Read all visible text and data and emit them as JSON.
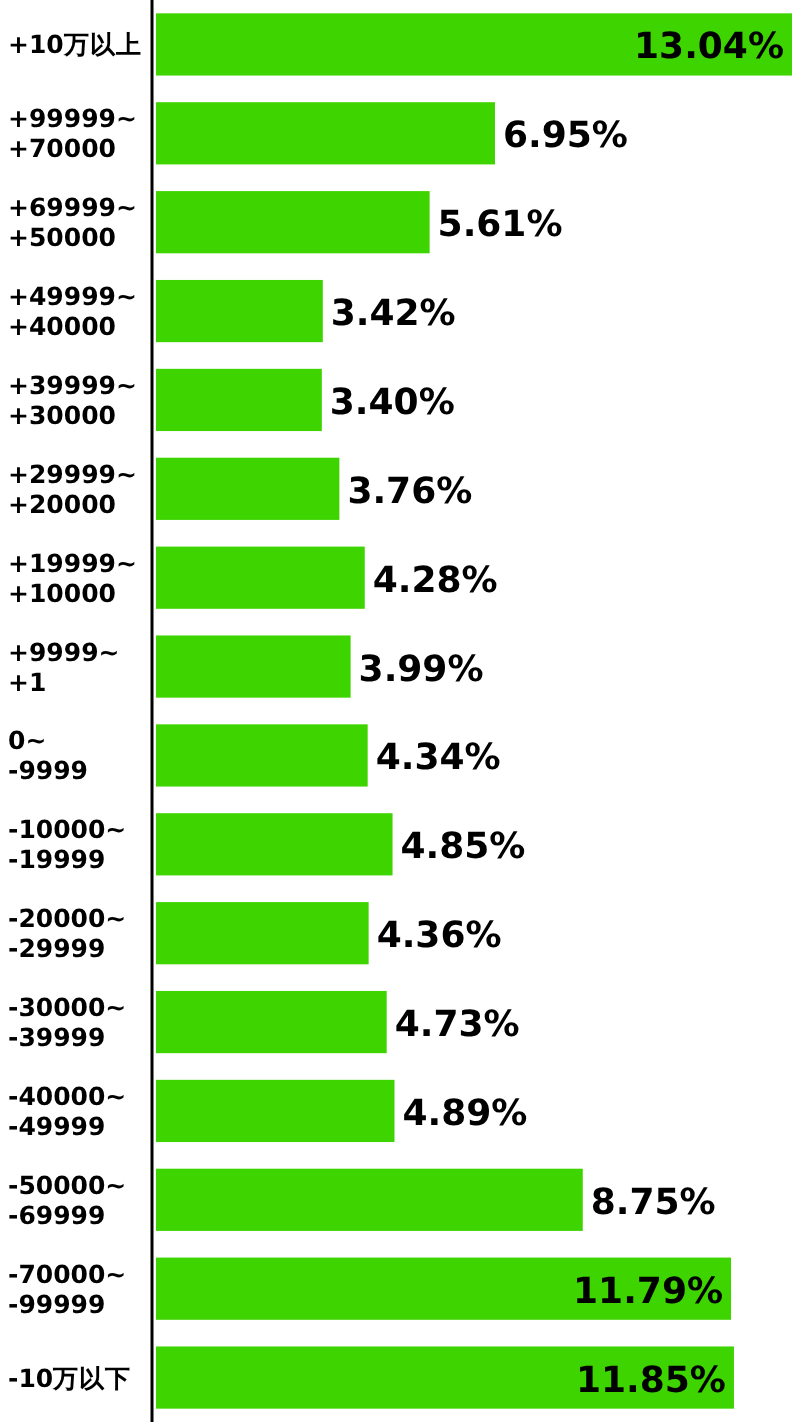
{
  "chart_data": {
    "type": "bar",
    "orientation": "horizontal",
    "categories": [
      "+10万以上",
      "+99999~ +70000",
      "+69999~ +50000",
      "+49999~ +40000",
      "+39999~ +30000",
      "+29999~ +20000",
      "+19999~ +10000",
      "+9999~ +1",
      "0~ -9999",
      "-10000~ -19999",
      "-20000~ -29999",
      "-30000~ -39999",
      "-40000~ -49999",
      "-50000~ -69999",
      "-70000~ -99999",
      "-10万以下"
    ],
    "values": [
      13.04,
      6.95,
      5.61,
      3.42,
      3.4,
      3.76,
      4.28,
      3.99,
      4.34,
      4.85,
      4.36,
      4.73,
      4.89,
      8.75,
      11.79,
      11.85
    ],
    "value_labels": [
      "13.04%",
      "6.95%",
      "5.61%",
      "3.42%",
      "3.40%",
      "3.76%",
      "4.28%",
      "3.99%",
      "4.34%",
      "4.85%",
      "4.36%",
      "4.73%",
      "4.89%",
      "8.75%",
      "11.79%",
      "11.85%"
    ],
    "color": "#3ed400"
  }
}
